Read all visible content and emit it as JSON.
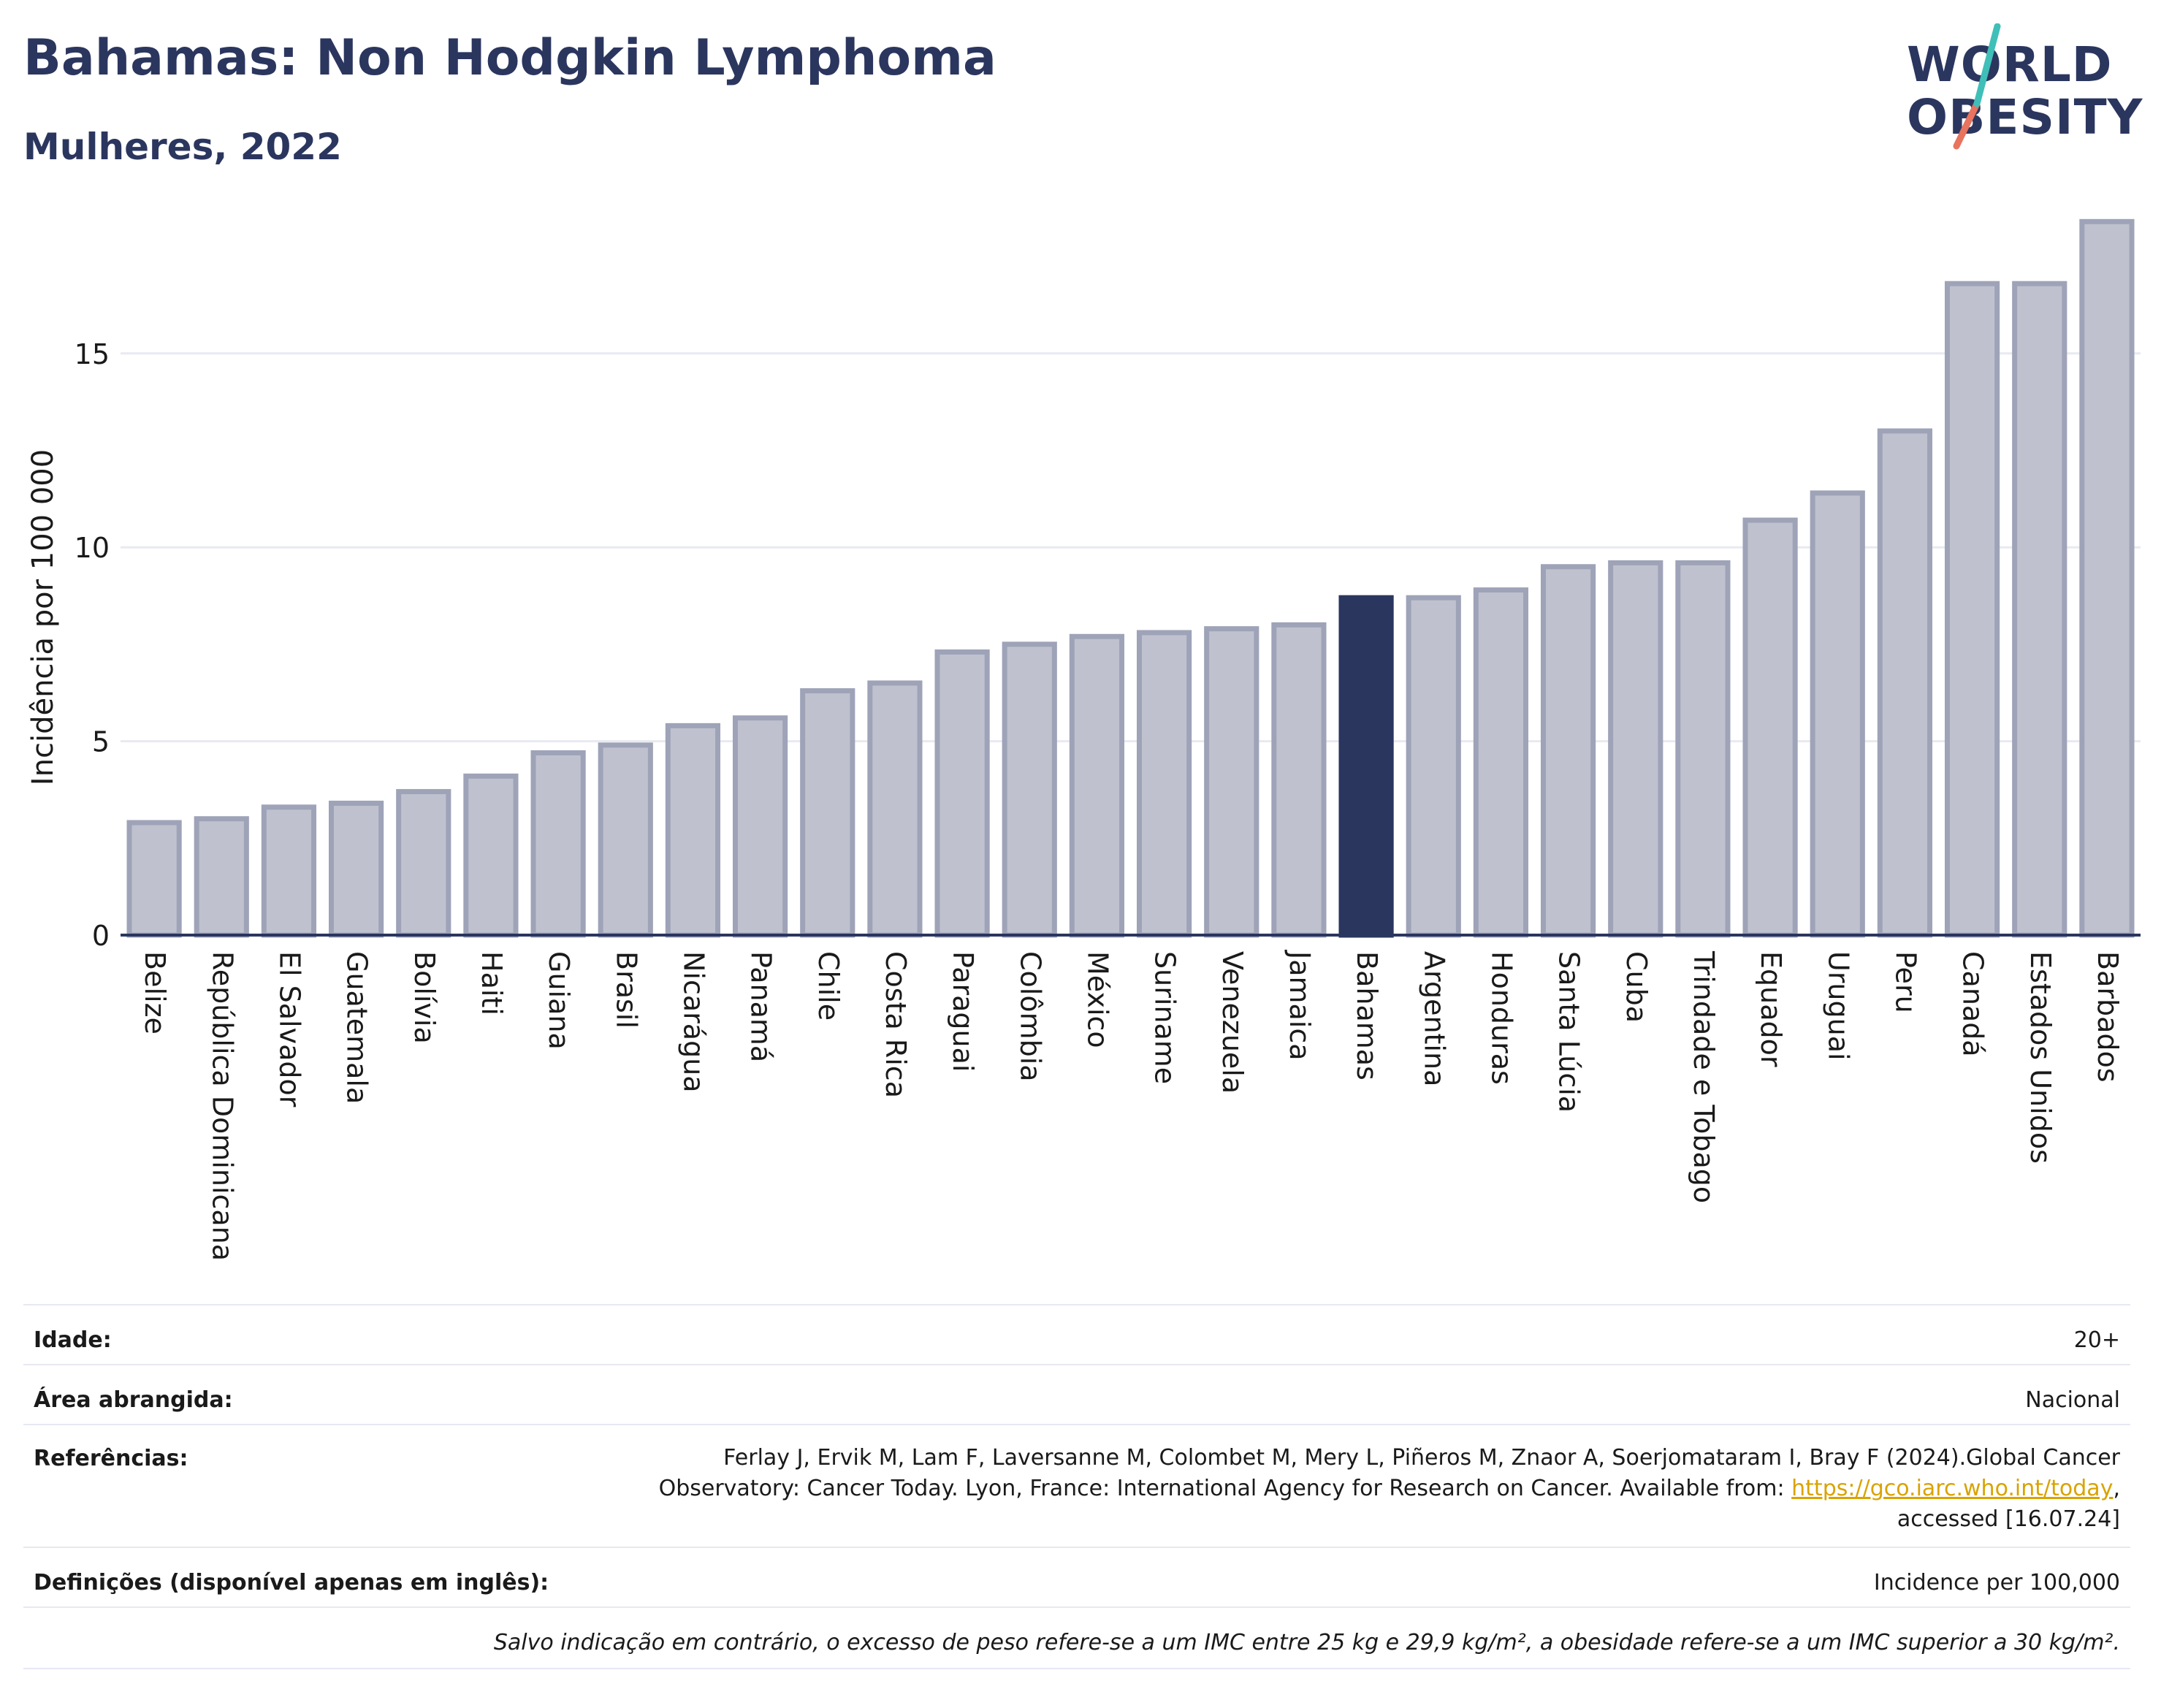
{
  "header": {
    "title": "Bahamas: Non Hodgkin Lymphoma",
    "subtitle": "Mulheres, 2022",
    "logo_line1": "WORLD",
    "logo_line2": "OBESITY"
  },
  "colors": {
    "title": "#2b365f",
    "bar_default_fill": "#bfc2ce",
    "bar_default_stroke": "#9ea3b8",
    "bar_highlight": "#2b365f",
    "logo_slash_teal": "#3fbfb8",
    "logo_slash_coral": "#e8735e",
    "link": "#d9a300"
  },
  "chart_data": {
    "type": "bar",
    "ylabel": "Incidência por 100 000",
    "ylim": [
      0,
      18.5
    ],
    "yticks": [
      0,
      5,
      10,
      15
    ],
    "grid": true,
    "highlight": "Bahamas",
    "categories": [
      "Belize",
      "República Dominicana",
      "El Salvador",
      "Guatemala",
      "Bolívia",
      "Haiti",
      "Guiana",
      "Brasil",
      "Nicarágua",
      "Panamá",
      "Chile",
      "Costa Rica",
      "Paraguai",
      "Colômbia",
      "México",
      "Suriname",
      "Venezuela",
      "Jamaica",
      "Bahamas",
      "Argentina",
      "Honduras",
      "Santa Lúcia",
      "Cuba",
      "Trindade e Tobago",
      "Equador",
      "Uruguai",
      "Peru",
      "Canadá",
      "Estados Unidos",
      "Barbados"
    ],
    "values": [
      2.9,
      3.0,
      3.3,
      3.4,
      3.7,
      4.1,
      4.7,
      4.9,
      5.4,
      5.6,
      6.3,
      6.5,
      7.3,
      7.5,
      7.7,
      7.8,
      7.9,
      8.0,
      8.7,
      8.7,
      8.9,
      9.5,
      9.6,
      9.6,
      10.7,
      11.4,
      13.0,
      16.8,
      16.8,
      18.4
    ]
  },
  "meta": {
    "age_label": "Idade:",
    "age_value": "20+",
    "area_label": "Área abrangida:",
    "area_value": "Nacional",
    "refs_label": "Referências:",
    "refs_line1": "Ferlay J, Ervik M, Lam F, Laversanne M, Colombet M, Mery L, Piñeros M, Znaor A, Soerjomataram I, Bray F (2024).Global Cancer",
    "refs_line2_pre": "Observatory: Cancer Today. Lyon, France: International Agency for Research on Cancer. Available from: ",
    "refs_link": "https://gco.iarc.who.int/today",
    "refs_line2_post": ",",
    "refs_line3": "accessed [16.07.24]",
    "defs_label": "Definições (disponível apenas em inglês):",
    "defs_value": "Incidence per 100,000",
    "footnote": "Salvo indicação em contrário, o excesso de peso refere-se a um IMC entre 25 kg e 29,9 kg/m², a obesidade refere-se a um IMC superior a 30 kg/m²."
  }
}
